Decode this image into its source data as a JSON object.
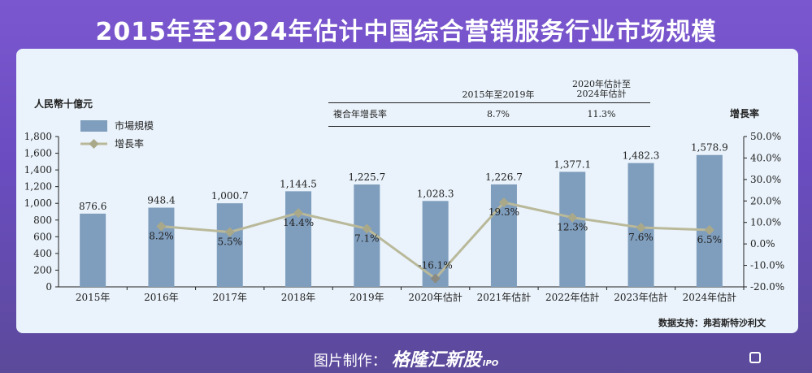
{
  "title": "2015年至2024年估计中国综合营销服务行业市场规模",
  "unit_left": "人民幣十億元",
  "unit_right": "增長率",
  "cagr_table": {
    "header_1": "2015年至2019年",
    "header_2_line1": "2020年估計至",
    "header_2_line2": "2024年估計",
    "row_label": "複合年增長率",
    "value_1": "8.7%",
    "value_2": "11.3%"
  },
  "source": "数据支持：弗若斯特沙利文",
  "footer": {
    "prefix": "图片制作：",
    "brand": "格隆汇新股",
    "ipo": "IPO"
  },
  "colors": {
    "bar": "#7f9dbd",
    "line": "#b9b99a",
    "marker": "#a9a98a",
    "negative_marker": "#8a8a80"
  },
  "chart_data": {
    "type": "bar",
    "categories": [
      "2015年",
      "2016年",
      "2017年",
      "2018年",
      "2019年",
      "2020年估計",
      "2021年估計",
      "2022年估計",
      "2023年估計",
      "2024年估計"
    ],
    "series": [
      {
        "name": "市場規模",
        "type": "bar",
        "axis": "left",
        "values": [
          876.6,
          948.4,
          1000.7,
          1144.5,
          1225.7,
          1028.3,
          1226.7,
          1377.1,
          1482.3,
          1578.9
        ],
        "labels": [
          "876.6",
          "948.4",
          "1,000.7",
          "1,144.5",
          "1,225.7",
          "1,028.3",
          "1,226.7",
          "1,377.1",
          "1,482.3",
          "1,578.9"
        ]
      },
      {
        "name": "增長率",
        "type": "line",
        "axis": "right",
        "values": [
          null,
          8.2,
          5.5,
          14.4,
          7.1,
          -16.1,
          19.3,
          12.3,
          7.6,
          6.5
        ],
        "labels": [
          "",
          "8.2%",
          "5.5%",
          "14.4%",
          "7.1%",
          "-16.1%",
          "19.3%",
          "12.3%",
          "7.6%",
          "6.5%"
        ]
      }
    ],
    "y_left": {
      "min": 0,
      "max": 1800,
      "ticks": [
        "0",
        "200",
        "400",
        "600",
        "800",
        "1,000",
        "1,200",
        "1,400",
        "1,600",
        "1,800"
      ]
    },
    "y_right": {
      "min": -20,
      "max": 50,
      "ticks": [
        "-20.0%",
        "-10.0%",
        "0.0%",
        "10.0%",
        "20.0%",
        "30.0%",
        "40.0%",
        "50.0%"
      ]
    },
    "legend_position": "top-left",
    "grid": false
  }
}
